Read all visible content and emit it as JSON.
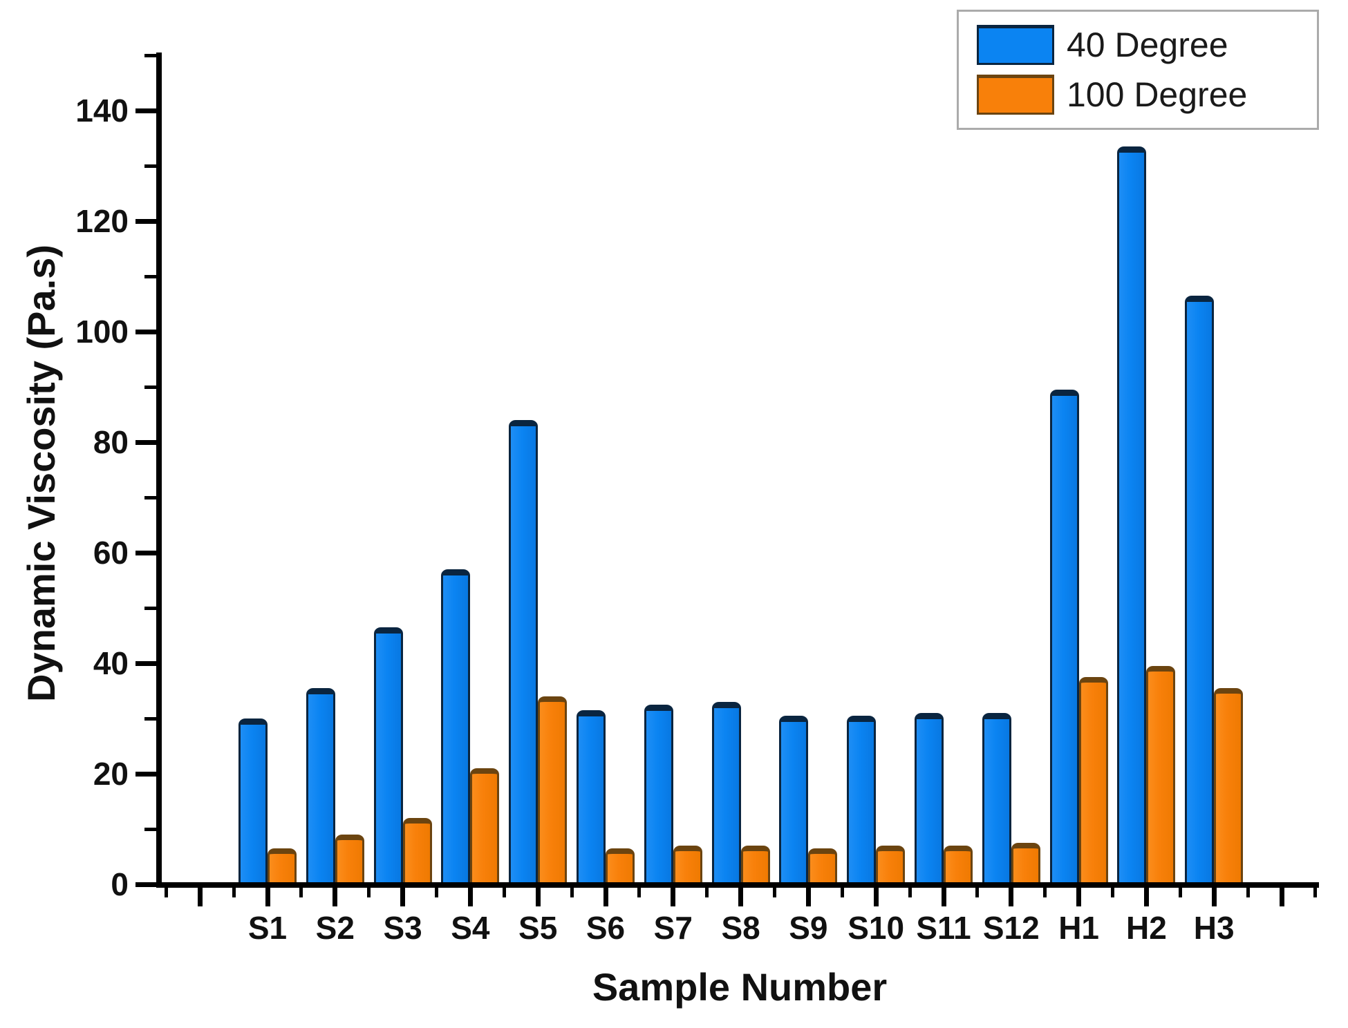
{
  "chart_data": {
    "type": "bar",
    "categories": [
      "S1",
      "S2",
      "S3",
      "S4",
      "S5",
      "S6",
      "S7",
      "S8",
      "S9",
      "S10",
      "S11",
      "S12",
      "H1",
      "H2",
      "H3"
    ],
    "series": [
      {
        "name": "40 Degree",
        "color": "#0b84f2",
        "edge_color": "#0a2540",
        "values": [
          30,
          35.5,
          46.5,
          57,
          84,
          31.5,
          32.5,
          33,
          30.5,
          30.5,
          31,
          31,
          89.5,
          133.5,
          106.5
        ]
      },
      {
        "name": "100 Degree",
        "color": "#f8800a",
        "edge_color": "#6b4410",
        "values": [
          6.5,
          9,
          12,
          21,
          34,
          6.5,
          7,
          7,
          6.5,
          7,
          7,
          7.5,
          37.5,
          39.5,
          35.5
        ]
      }
    ],
    "title": "",
    "xlabel": "Sample Number",
    "ylabel": "Dynamic Viscosity (Pa.s)",
    "ylim": [
      0,
      150
    ],
    "ytick_major_step": 20,
    "ytick_minor_step": 10,
    "ytick_label_max": 140,
    "legend_position": "top-right",
    "grid": false,
    "axis_color": "#000000",
    "background_color": "#ffffff"
  }
}
